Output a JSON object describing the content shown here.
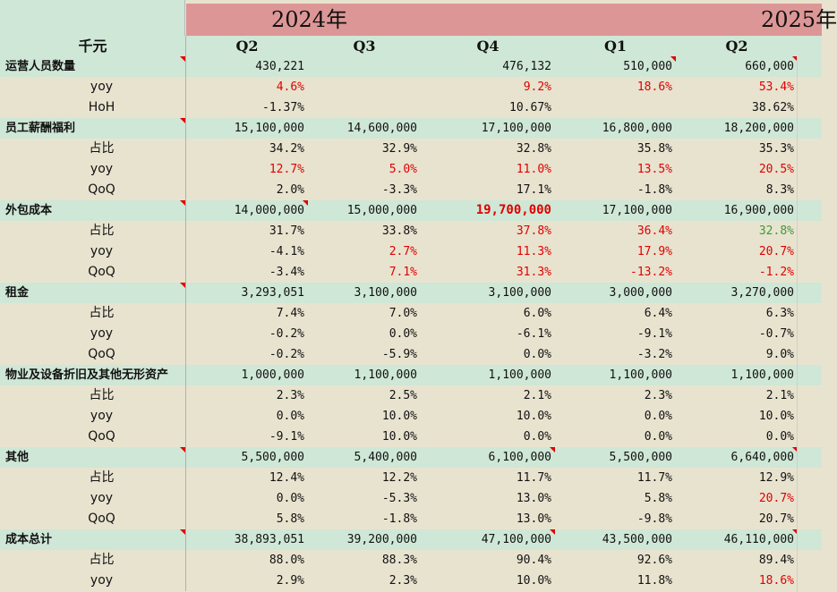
{
  "years": {
    "y2024": "2024年",
    "y2025": "2025年"
  },
  "header": {
    "unit": "千元",
    "quarters": [
      "Q2",
      "Q3",
      "Q4",
      "Q1",
      "Q2"
    ]
  },
  "rows": [
    {
      "label": "运营人员数量",
      "type": "cat",
      "values": [
        "430,221",
        "",
        "476,132",
        "510,000",
        "660,000"
      ],
      "styles": [
        "",
        "",
        "",
        "",
        ""
      ],
      "marks": [
        0,
        0,
        0,
        1,
        1
      ],
      "labelMark": 1
    },
    {
      "label": "yoy",
      "type": "sub",
      "values": [
        "4.6%",
        "",
        "9.2%",
        "18.6%",
        "53.4%"
      ],
      "styles": [
        "red",
        "",
        "red",
        "red",
        "red"
      ],
      "marks": [
        0,
        0,
        0,
        0,
        0
      ]
    },
    {
      "label": "HoH",
      "type": "sub",
      "values": [
        "-1.37%",
        "",
        "10.67%",
        "",
        "38.62%"
      ],
      "styles": [
        "",
        "",
        "",
        "",
        ""
      ],
      "marks": [
        0,
        0,
        0,
        0,
        0
      ]
    },
    {
      "label": "员工薪酬福利",
      "type": "cat",
      "values": [
        "15,100,000",
        "14,600,000",
        "17,100,000",
        "16,800,000",
        "18,200,000"
      ],
      "styles": [
        "",
        "",
        "",
        "",
        ""
      ],
      "marks": [
        0,
        0,
        0,
        0,
        0
      ],
      "labelMark": 1
    },
    {
      "label": "占比",
      "type": "sub",
      "values": [
        "34.2%",
        "32.9%",
        "32.8%",
        "35.8%",
        "35.3%"
      ],
      "styles": [
        "",
        "",
        "",
        "",
        ""
      ],
      "marks": [
        0,
        0,
        0,
        0,
        0
      ]
    },
    {
      "label": "yoy",
      "type": "sub",
      "values": [
        "12.7%",
        "5.0%",
        "11.0%",
        "13.5%",
        "20.5%"
      ],
      "styles": [
        "red",
        "red",
        "red",
        "red",
        "red"
      ],
      "marks": [
        0,
        0,
        0,
        0,
        0
      ]
    },
    {
      "label": "QoQ",
      "type": "sub",
      "values": [
        "2.0%",
        "-3.3%",
        "17.1%",
        "-1.8%",
        "8.3%"
      ],
      "styles": [
        "",
        "",
        "",
        "",
        ""
      ],
      "marks": [
        0,
        0,
        0,
        0,
        0
      ]
    },
    {
      "label": "外包成本",
      "type": "cat",
      "values": [
        "14,000,000",
        "15,000,000",
        "19,700,000",
        "17,100,000",
        "16,900,000"
      ],
      "styles": [
        "",
        "",
        "bold-red",
        "",
        ""
      ],
      "marks": [
        1,
        0,
        0,
        0,
        0
      ],
      "labelMark": 1
    },
    {
      "label": "占比",
      "type": "sub",
      "values": [
        "31.7%",
        "33.8%",
        "37.8%",
        "36.4%",
        "32.8%"
      ],
      "styles": [
        "",
        "",
        "red",
        "red",
        "green"
      ],
      "marks": [
        0,
        0,
        0,
        0,
        0
      ]
    },
    {
      "label": "yoy",
      "type": "sub",
      "values": [
        "-4.1%",
        "2.7%",
        "11.3%",
        "17.9%",
        "20.7%"
      ],
      "styles": [
        "",
        "red",
        "red",
        "red",
        "red"
      ],
      "marks": [
        0,
        0,
        0,
        0,
        0
      ]
    },
    {
      "label": "QoQ",
      "type": "sub",
      "values": [
        "-3.4%",
        "7.1%",
        "31.3%",
        "-13.2%",
        "-1.2%"
      ],
      "styles": [
        "",
        "red",
        "red",
        "red",
        "red"
      ],
      "marks": [
        0,
        0,
        0,
        0,
        0
      ]
    },
    {
      "label": "租金",
      "type": "cat",
      "values": [
        "3,293,051",
        "3,100,000",
        "3,100,000",
        "3,000,000",
        "3,270,000"
      ],
      "styles": [
        "",
        "",
        "",
        "",
        ""
      ],
      "marks": [
        0,
        0,
        0,
        0,
        0
      ],
      "labelMark": 1
    },
    {
      "label": "占比",
      "type": "sub",
      "values": [
        "7.4%",
        "7.0%",
        "6.0%",
        "6.4%",
        "6.3%"
      ],
      "styles": [
        "",
        "",
        "",
        "",
        ""
      ],
      "marks": [
        0,
        0,
        0,
        0,
        0
      ]
    },
    {
      "label": "yoy",
      "type": "sub",
      "values": [
        "-0.2%",
        "0.0%",
        "-6.1%",
        "-9.1%",
        "-0.7%"
      ],
      "styles": [
        "",
        "",
        "",
        "",
        ""
      ],
      "marks": [
        0,
        0,
        0,
        0,
        0
      ]
    },
    {
      "label": "QoQ",
      "type": "sub",
      "values": [
        "-0.2%",
        "-5.9%",
        "0.0%",
        "-3.2%",
        "9.0%"
      ],
      "styles": [
        "",
        "",
        "",
        "",
        ""
      ],
      "marks": [
        0,
        0,
        0,
        0,
        0
      ]
    },
    {
      "label": "物业及设备折旧及其他无形资产",
      "type": "cat",
      "values": [
        "1,000,000",
        "1,100,000",
        "1,100,000",
        "1,100,000",
        "1,100,000"
      ],
      "styles": [
        "",
        "",
        "",
        "",
        ""
      ],
      "marks": [
        0,
        0,
        0,
        0,
        0
      ],
      "labelMark": 0
    },
    {
      "label": "占比",
      "type": "sub",
      "values": [
        "2.3%",
        "2.5%",
        "2.1%",
        "2.3%",
        "2.1%"
      ],
      "styles": [
        "",
        "",
        "",
        "",
        ""
      ],
      "marks": [
        0,
        0,
        0,
        0,
        0
      ]
    },
    {
      "label": "yoy",
      "type": "sub",
      "values": [
        "0.0%",
        "10.0%",
        "10.0%",
        "0.0%",
        "10.0%"
      ],
      "styles": [
        "",
        "",
        "",
        "",
        ""
      ],
      "marks": [
        0,
        0,
        0,
        0,
        0
      ]
    },
    {
      "label": "QoQ",
      "type": "sub",
      "values": [
        "-9.1%",
        "10.0%",
        "0.0%",
        "0.0%",
        "0.0%"
      ],
      "styles": [
        "",
        "",
        "",
        "",
        ""
      ],
      "marks": [
        0,
        0,
        0,
        0,
        0
      ]
    },
    {
      "label": "其他",
      "type": "cat",
      "values": [
        "5,500,000",
        "5,400,000",
        "6,100,000",
        "5,500,000",
        "6,640,000"
      ],
      "styles": [
        "",
        "",
        "",
        "",
        ""
      ],
      "marks": [
        0,
        0,
        1,
        0,
        1
      ],
      "labelMark": 1
    },
    {
      "label": "占比",
      "type": "sub",
      "values": [
        "12.4%",
        "12.2%",
        "11.7%",
        "11.7%",
        "12.9%"
      ],
      "styles": [
        "",
        "",
        "",
        "",
        ""
      ],
      "marks": [
        0,
        0,
        0,
        0,
        0
      ]
    },
    {
      "label": "yoy",
      "type": "sub",
      "values": [
        "0.0%",
        "-5.3%",
        "13.0%",
        "5.8%",
        "20.7%"
      ],
      "styles": [
        "",
        "",
        "",
        "",
        "red"
      ],
      "marks": [
        0,
        0,
        0,
        0,
        0
      ]
    },
    {
      "label": "QoQ",
      "type": "sub",
      "values": [
        "5.8%",
        "-1.8%",
        "13.0%",
        "-9.8%",
        "20.7%"
      ],
      "styles": [
        "",
        "",
        "",
        "",
        ""
      ],
      "marks": [
        0,
        0,
        0,
        0,
        0
      ]
    },
    {
      "label": "成本总计",
      "type": "cat",
      "values": [
        "38,893,051",
        "39,200,000",
        "47,100,000",
        "43,500,000",
        "46,110,000"
      ],
      "styles": [
        "",
        "",
        "",
        "",
        ""
      ],
      "marks": [
        0,
        0,
        1,
        0,
        1
      ],
      "labelMark": 1
    },
    {
      "label": "占比",
      "type": "sub",
      "values": [
        "88.0%",
        "88.3%",
        "90.4%",
        "92.6%",
        "89.4%"
      ],
      "styles": [
        "",
        "",
        "",
        "",
        ""
      ],
      "marks": [
        0,
        0,
        0,
        0,
        0
      ]
    },
    {
      "label": "yoy",
      "type": "sub",
      "values": [
        "2.9%",
        "2.3%",
        "10.0%",
        "11.8%",
        "18.6%"
      ],
      "styles": [
        "",
        "",
        "",
        "",
        "red"
      ],
      "marks": [
        0,
        0,
        0,
        0,
        0
      ]
    }
  ]
}
